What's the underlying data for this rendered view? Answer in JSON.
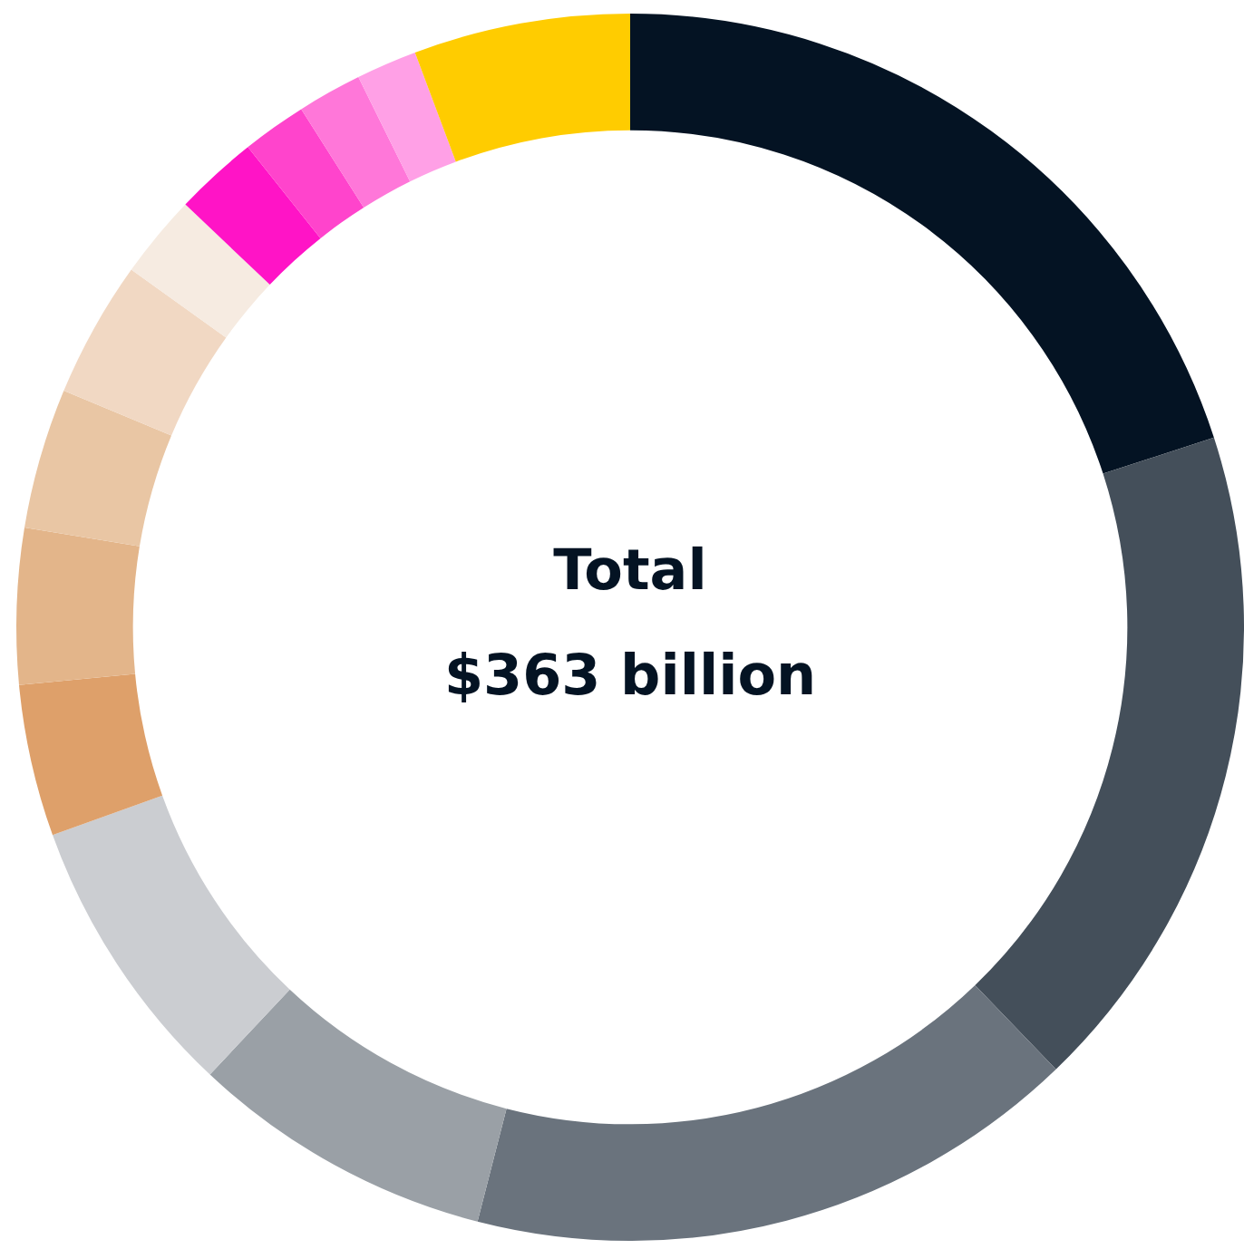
{
  "chart_data": {
    "type": "donut",
    "categories": [
      null,
      null,
      null,
      null,
      null,
      null,
      null,
      null,
      null,
      null,
      null,
      null,
      null,
      null,
      null
    ],
    "values": [
      20.0,
      17.8,
      16.2,
      8.0,
      7.5,
      4.0,
      4.1,
      3.7,
      3.6,
      2.2,
      2.2,
      1.7,
      1.7,
      1.6,
      5.7
    ],
    "colors": [
      "#041323",
      "#444f5a",
      "#6a737d",
      "#9aa0a6",
      "#cbcdd1",
      "#dea06a",
      "#e3b58a",
      "#e9c6a4",
      "#f1d8c3",
      "#f6ebe1",
      "#ff14c6",
      "#ff44cc",
      "#ff77d9",
      "#ffa0e6",
      "#ffcc00"
    ],
    "annotations": [
      "Total",
      "$363 billion"
    ],
    "legend": false
  }
}
